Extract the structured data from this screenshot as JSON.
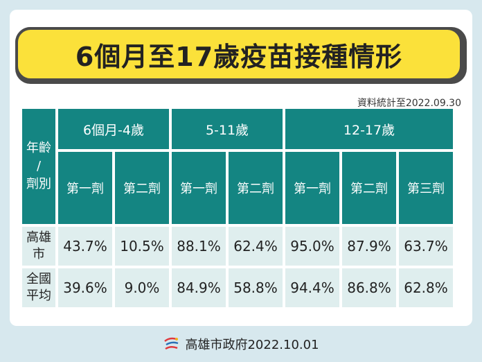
{
  "title": "6個月至17歲疫苗接種情形",
  "note": "資料統計至2022.09.30",
  "table": {
    "corner_label_line1": "年齡",
    "corner_label_line2": "/",
    "corner_label_line3": "劑別",
    "groups": [
      "6個月-4歲",
      "5-11歲",
      "12-17歲"
    ],
    "doses": [
      "第一劑",
      "第二劑",
      "第一劑",
      "第二劑",
      "第一劑",
      "第二劑",
      "第三劑"
    ],
    "rows": [
      {
        "label_line1": "高雄",
        "label_line2": "市",
        "values": [
          "43.7%",
          "10.5%",
          "88.1%",
          "62.4%",
          "95.0%",
          "87.9%",
          "63.7%"
        ]
      },
      {
        "label_line1": "全國",
        "label_line2": "平均",
        "values": [
          "39.6%",
          "9.0%",
          "84.9%",
          "58.8%",
          "94.4%",
          "86.8%",
          "62.8%"
        ]
      }
    ]
  },
  "footer": {
    "text": "高雄市政府2022.10.01",
    "logo_icon": "kaohsiung-city-logo"
  },
  "colors": {
    "header_teal": "#148582",
    "cell_light": "#dfeeee",
    "title_yellow": "#fbe13a",
    "background": "#d7e8ee"
  }
}
